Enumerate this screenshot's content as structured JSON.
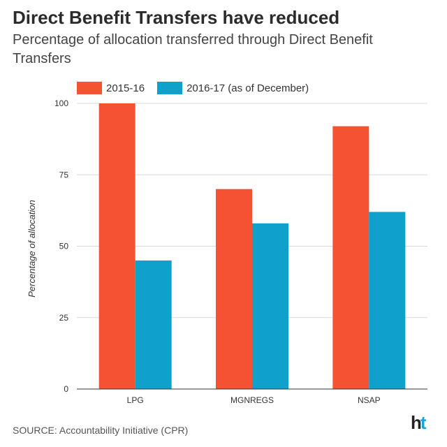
{
  "header": {
    "title": "Direct Benefit Transfers have reduced",
    "subtitle": "Percentage of allocation transferred through Direct Benefit Transfers"
  },
  "footer": {
    "source": "SOURCE: Accountability Initiative (CPR)",
    "brand_h": "h",
    "brand_t": "t"
  },
  "chart_data": {
    "type": "bar",
    "title": "Direct Benefit Transfers have reduced",
    "subtitle": "Percentage of allocation transferred through Direct Benefit Transfers",
    "xlabel": "",
    "ylabel": "Percentage of allocation",
    "categories": [
      "LPG",
      "MGNREGS",
      "NSAP"
    ],
    "series": [
      {
        "name": "2015-16",
        "color": "#f55234",
        "values": [
          100,
          70,
          92
        ]
      },
      {
        "name": "2016-17 (as of December)",
        "color": "#0fa0cc",
        "values": [
          45,
          58,
          62
        ]
      }
    ],
    "ylim": [
      0,
      100
    ],
    "yticks": [
      0,
      25,
      50,
      75,
      100
    ],
    "grid": true,
    "legend_position": "top-left"
  }
}
